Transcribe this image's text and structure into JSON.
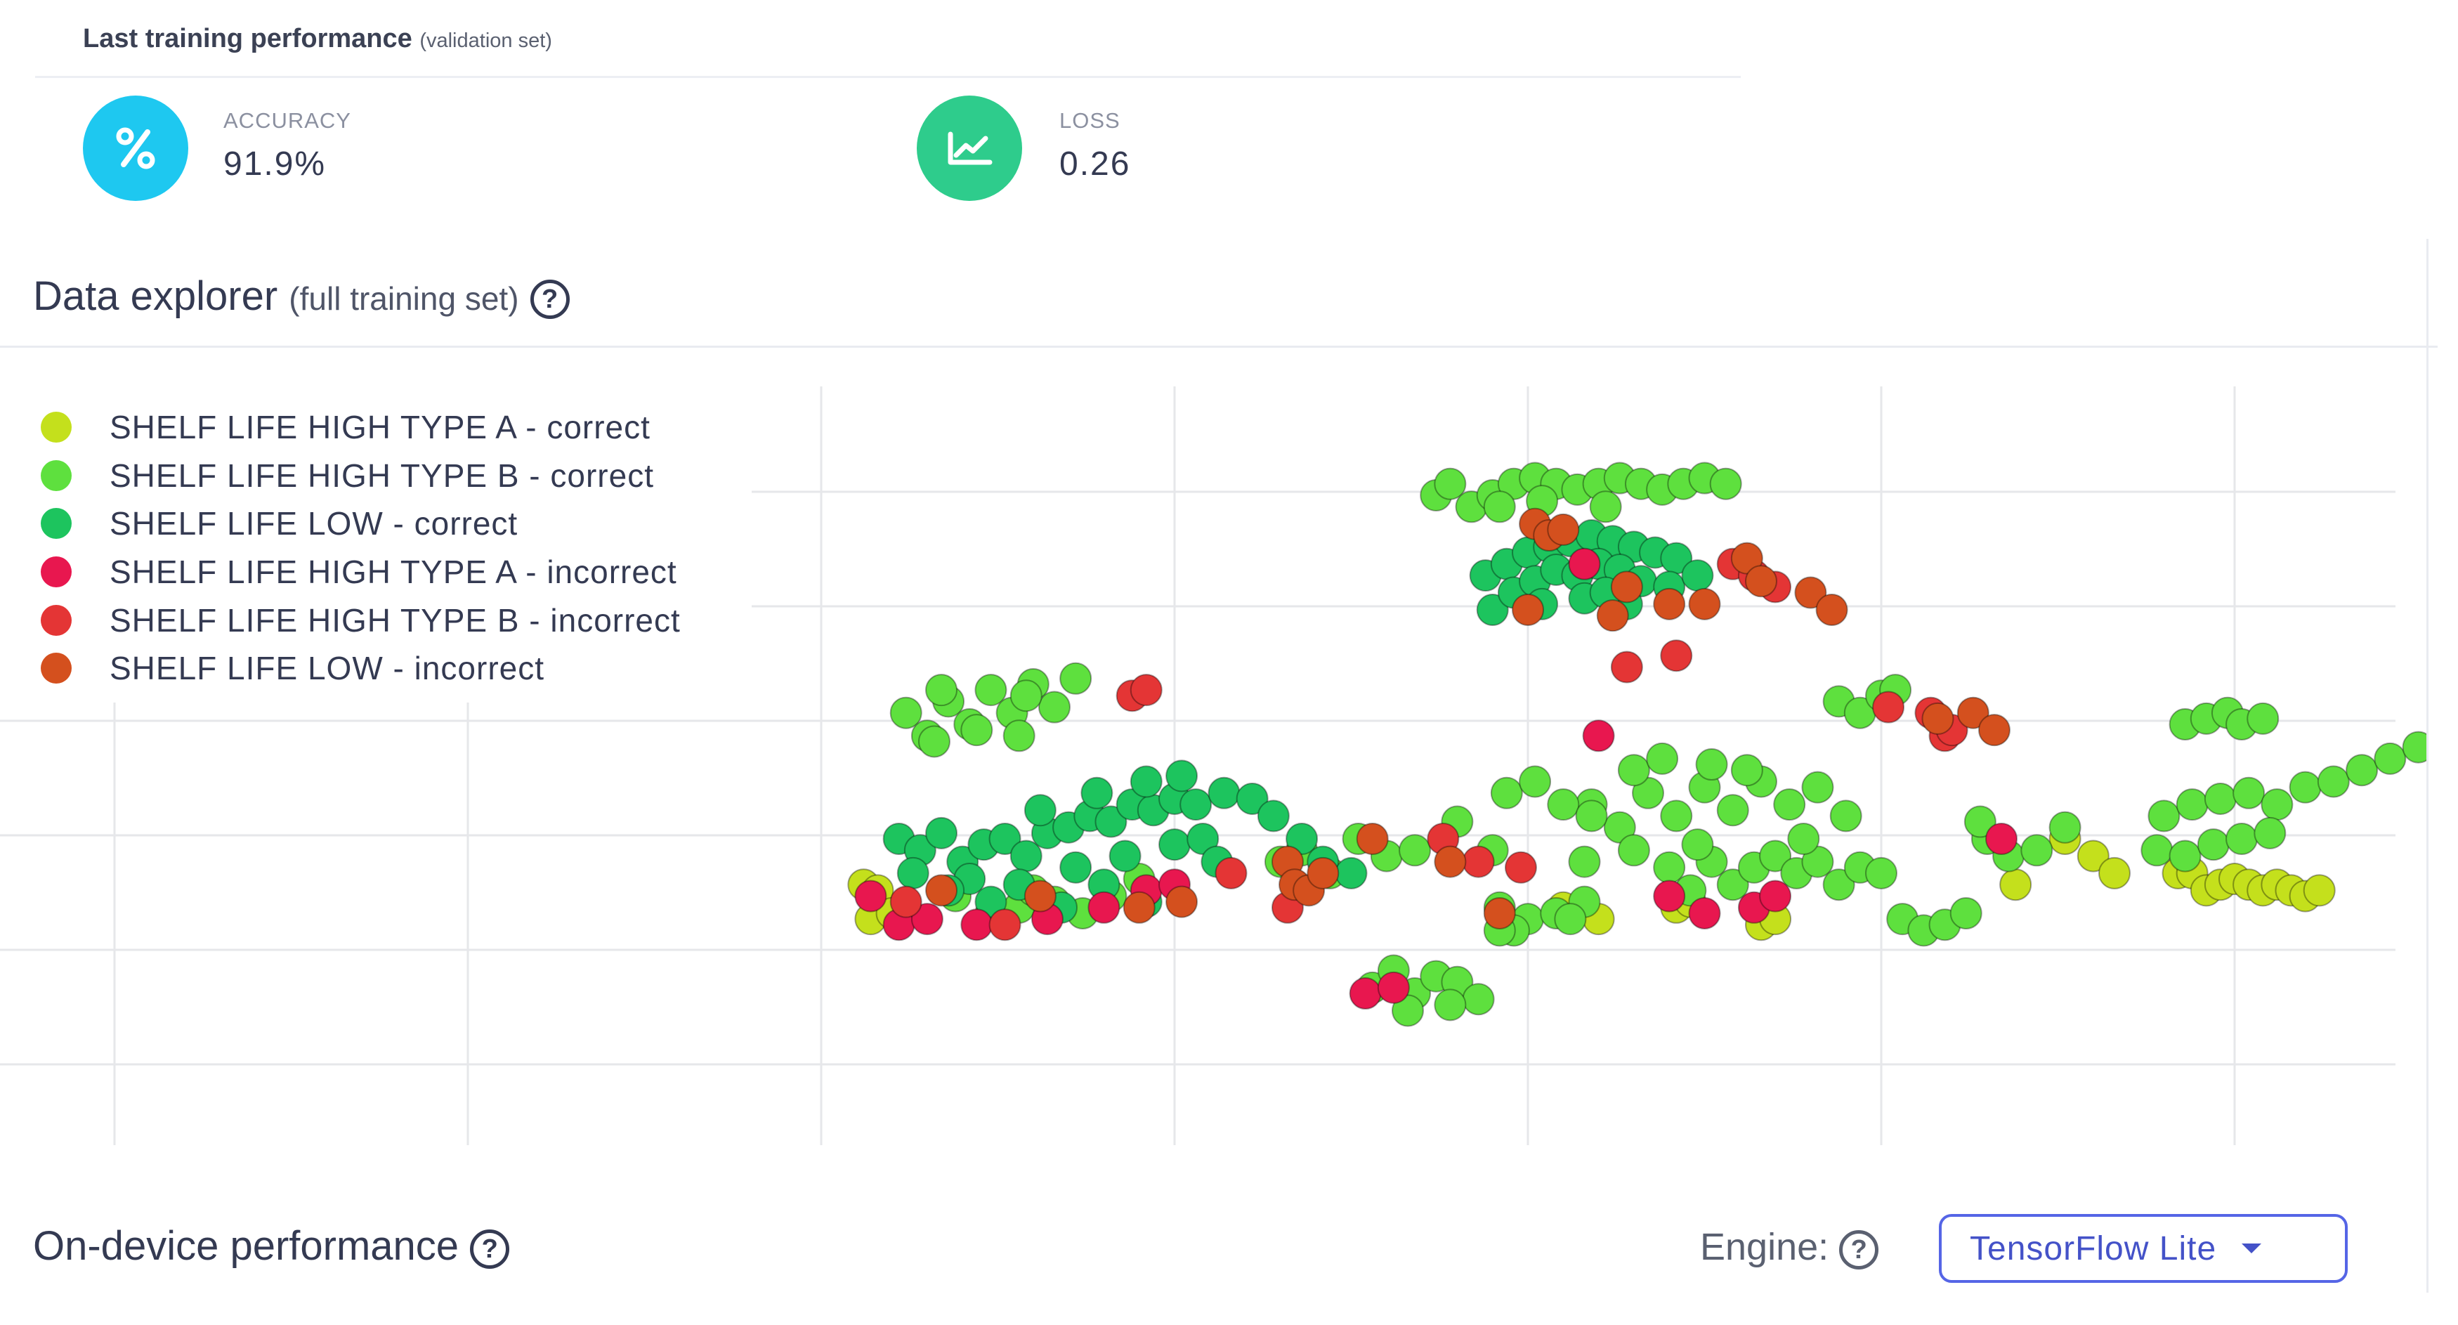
{
  "performance": {
    "title": "Last training performance",
    "subtitle": "(validation set)",
    "accuracy": {
      "label": "ACCURACY",
      "value": "91.9%",
      "icon": "percent-icon",
      "color": "#1ec8f0"
    },
    "loss": {
      "label": "LOSS",
      "value": "0.26",
      "icon": "chart-icon",
      "color": "#2ecc8c"
    }
  },
  "explorer": {
    "title": "Data explorer",
    "subtitle": "(full training set)",
    "help": "?"
  },
  "chart_data": {
    "type": "scatter",
    "title": "",
    "xlabel": "",
    "ylabel": "",
    "grid": true,
    "legend_placement": "top-left",
    "series": [
      {
        "name": "SHELF LIFE HIGH TYPE A - correct",
        "color": "#c4e01c",
        "points": [
          [
            10.6,
            1.6
          ],
          [
            10.7,
            1.3
          ],
          [
            10.8,
            1.55
          ],
          [
            11.0,
            1.35
          ],
          [
            22.1,
            1.4
          ],
          [
            22.3,
            1.45
          ],
          [
            23.3,
            1.25
          ],
          [
            23.5,
            1.3
          ],
          [
            29.2,
            1.7
          ],
          [
            29.4,
            1.7
          ],
          [
            29.6,
            1.55
          ],
          [
            29.8,
            1.6
          ],
          [
            30.0,
            1.65
          ],
          [
            30.2,
            1.6
          ],
          [
            30.4,
            1.55
          ],
          [
            30.6,
            1.6
          ],
          [
            30.8,
            1.55
          ],
          [
            31.0,
            1.5
          ],
          [
            31.2,
            1.55
          ],
          [
            27.6,
            2.0
          ],
          [
            28.0,
            1.85
          ],
          [
            28.3,
            1.7
          ],
          [
            26.9,
            1.6
          ],
          [
            20.5,
            1.4
          ],
          [
            21.0,
            1.3
          ]
        ]
      },
      {
        "name": "SHELF LIFE HIGH TYPE B - correct",
        "color": "#5ee03e",
        "points": [
          [
            18.7,
            5.0
          ],
          [
            18.9,
            5.1
          ],
          [
            19.2,
            4.9
          ],
          [
            19.5,
            5.0
          ],
          [
            19.8,
            5.1
          ],
          [
            20.1,
            5.15
          ],
          [
            20.4,
            5.1
          ],
          [
            20.7,
            5.05
          ],
          [
            21.0,
            5.1
          ],
          [
            21.3,
            5.15
          ],
          [
            21.6,
            5.1
          ],
          [
            21.9,
            5.05
          ],
          [
            22.2,
            5.1
          ],
          [
            22.5,
            5.15
          ],
          [
            22.8,
            5.1
          ],
          [
            19.6,
            4.9
          ],
          [
            20.2,
            4.95
          ],
          [
            21.1,
            4.9
          ],
          [
            11.2,
            3.1
          ],
          [
            11.5,
            2.9
          ],
          [
            11.8,
            3.2
          ],
          [
            12.1,
            3.0
          ],
          [
            12.4,
            3.3
          ],
          [
            12.7,
            3.1
          ],
          [
            13.0,
            3.35
          ],
          [
            13.3,
            3.15
          ],
          [
            13.6,
            3.4
          ],
          [
            11.6,
            2.85
          ],
          [
            12.2,
            2.95
          ],
          [
            12.8,
            2.9
          ],
          [
            11.7,
            3.3
          ],
          [
            12.9,
            3.25
          ],
          [
            24.4,
            3.2
          ],
          [
            24.7,
            3.1
          ],
          [
            25.0,
            3.25
          ],
          [
            25.2,
            3.3
          ],
          [
            29.3,
            3.0
          ],
          [
            29.6,
            3.05
          ],
          [
            29.9,
            3.1
          ],
          [
            30.1,
            3.0
          ],
          [
            30.4,
            3.05
          ],
          [
            20.9,
            2.3
          ],
          [
            21.3,
            2.1
          ],
          [
            21.7,
            2.4
          ],
          [
            22.1,
            2.2
          ],
          [
            22.5,
            2.45
          ],
          [
            22.9,
            2.25
          ],
          [
            23.3,
            2.5
          ],
          [
            23.7,
            2.3
          ],
          [
            24.1,
            2.45
          ],
          [
            24.5,
            2.2
          ],
          [
            21.5,
            2.6
          ],
          [
            22.6,
            2.65
          ],
          [
            21.9,
            2.7
          ],
          [
            23.1,
            2.6
          ],
          [
            22.0,
            1.75
          ],
          [
            22.3,
            1.55
          ],
          [
            22.6,
            1.8
          ],
          [
            22.9,
            1.6
          ],
          [
            23.2,
            1.75
          ],
          [
            23.5,
            1.85
          ],
          [
            23.8,
            1.7
          ],
          [
            24.1,
            1.8
          ],
          [
            24.4,
            1.6
          ],
          [
            24.7,
            1.75
          ],
          [
            25.0,
            1.7
          ],
          [
            21.5,
            1.9
          ],
          [
            22.4,
            1.95
          ],
          [
            23.9,
            2.0
          ],
          [
            20.8,
            1.8
          ],
          [
            19.6,
            1.4
          ],
          [
            20.0,
            1.3
          ],
          [
            20.4,
            1.35
          ],
          [
            20.8,
            1.45
          ],
          [
            19.8,
            1.2
          ],
          [
            20.6,
            1.3
          ],
          [
            17.8,
            0.7
          ],
          [
            18.1,
            0.85
          ],
          [
            18.4,
            0.65
          ],
          [
            18.7,
            0.8
          ],
          [
            19.0,
            0.75
          ],
          [
            19.3,
            0.6
          ],
          [
            18.3,
            0.5
          ],
          [
            18.9,
            0.55
          ],
          [
            19.6,
            1.2
          ],
          [
            25.3,
            1.3
          ],
          [
            25.6,
            1.2
          ],
          [
            25.9,
            1.25
          ],
          [
            26.2,
            1.35
          ],
          [
            26.5,
            2.0
          ],
          [
            26.8,
            1.85
          ],
          [
            27.2,
            1.9
          ],
          [
            27.6,
            2.1
          ],
          [
            26.4,
            2.15
          ],
          [
            11.9,
            1.5
          ],
          [
            12.4,
            1.35
          ],
          [
            12.8,
            1.4
          ],
          [
            13.3,
            1.45
          ],
          [
            13.7,
            1.35
          ],
          [
            14.1,
            1.5
          ],
          [
            13.0,
            1.55
          ],
          [
            14.5,
            1.65
          ],
          [
            16.5,
            1.8
          ],
          [
            16.8,
            1.9
          ],
          [
            17.2,
            1.7
          ],
          [
            17.6,
            2.0
          ],
          [
            18.0,
            1.85
          ],
          [
            18.4,
            1.9
          ],
          [
            19.0,
            2.15
          ],
          [
            19.5,
            1.9
          ],
          [
            19.7,
            2.4
          ],
          [
            20.1,
            2.5
          ],
          [
            20.5,
            2.3
          ],
          [
            20.9,
            2.2
          ],
          [
            29.0,
            2.2
          ],
          [
            29.4,
            2.3
          ],
          [
            29.8,
            2.35
          ],
          [
            30.2,
            2.4
          ],
          [
            30.6,
            2.3
          ],
          [
            31.0,
            2.45
          ],
          [
            31.4,
            2.5
          ],
          [
            31.8,
            2.6
          ],
          [
            32.2,
            2.7
          ],
          [
            32.6,
            2.8
          ],
          [
            33.0,
            2.85
          ],
          [
            28.9,
            1.9
          ],
          [
            29.3,
            1.85
          ],
          [
            29.7,
            1.95
          ],
          [
            30.1,
            2.0
          ],
          [
            30.5,
            2.05
          ]
        ]
      },
      {
        "name": "SHELF LIFE LOW - correct",
        "color": "#1dc45e",
        "points": [
          [
            19.4,
            4.3
          ],
          [
            19.7,
            4.4
          ],
          [
            20.0,
            4.5
          ],
          [
            20.3,
            4.55
          ],
          [
            20.6,
            4.6
          ],
          [
            20.9,
            4.65
          ],
          [
            21.2,
            4.6
          ],
          [
            21.5,
            4.55
          ],
          [
            21.8,
            4.5
          ],
          [
            22.1,
            4.45
          ],
          [
            19.5,
            4.0
          ],
          [
            19.8,
            4.15
          ],
          [
            20.1,
            4.25
          ],
          [
            20.4,
            4.35
          ],
          [
            20.7,
            4.3
          ],
          [
            21.0,
            4.4
          ],
          [
            21.3,
            4.35
          ],
          [
            21.6,
            4.25
          ],
          [
            20.2,
            4.05
          ],
          [
            20.8,
            4.1
          ],
          [
            21.4,
            4.05
          ],
          [
            21.1,
            4.15
          ],
          [
            22.0,
            4.2
          ],
          [
            22.4,
            4.3
          ],
          [
            11.1,
            2.0
          ],
          [
            11.4,
            1.9
          ],
          [
            11.7,
            2.05
          ],
          [
            12.0,
            1.8
          ],
          [
            12.3,
            1.95
          ],
          [
            12.6,
            2.0
          ],
          [
            12.9,
            1.85
          ],
          [
            13.2,
            2.05
          ],
          [
            13.5,
            2.1
          ],
          [
            13.8,
            2.2
          ],
          [
            14.1,
            2.15
          ],
          [
            14.4,
            2.3
          ],
          [
            14.7,
            2.25
          ],
          [
            15.0,
            2.35
          ],
          [
            15.3,
            2.3
          ],
          [
            11.3,
            1.7
          ],
          [
            12.1,
            1.65
          ],
          [
            12.8,
            1.6
          ],
          [
            13.6,
            1.75
          ],
          [
            14.3,
            1.85
          ],
          [
            15.0,
            1.95
          ],
          [
            15.4,
            2.0
          ],
          [
            15.7,
            2.4
          ],
          [
            16.1,
            2.35
          ],
          [
            16.4,
            2.2
          ],
          [
            16.8,
            2.0
          ],
          [
            17.1,
            1.8
          ],
          [
            17.5,
            1.7
          ],
          [
            13.1,
            2.25
          ],
          [
            13.9,
            2.4
          ],
          [
            14.6,
            2.5
          ],
          [
            15.1,
            2.55
          ],
          [
            14.0,
            1.6
          ],
          [
            13.4,
            1.4
          ],
          [
            14.6,
            1.45
          ],
          [
            12.4,
            1.45
          ],
          [
            11.8,
            1.55
          ],
          [
            15.6,
            1.8
          ]
        ]
      },
      {
        "name": "SHELF LIFE HIGH TYPE A - incorrect",
        "color": "#e8174f",
        "points": [
          [
            10.7,
            1.5
          ],
          [
            11.1,
            1.25
          ],
          [
            11.5,
            1.3
          ],
          [
            12.2,
            1.25
          ],
          [
            13.2,
            1.3
          ],
          [
            14.0,
            1.4
          ],
          [
            14.6,
            1.55
          ],
          [
            15.0,
            1.6
          ],
          [
            22.0,
            1.5
          ],
          [
            22.5,
            1.35
          ],
          [
            23.2,
            1.4
          ],
          [
            23.5,
            1.5
          ],
          [
            20.8,
            4.4
          ],
          [
            21.0,
            2.9
          ],
          [
            17.7,
            0.65
          ],
          [
            18.1,
            0.7
          ],
          [
            26.7,
            2.0
          ]
        ]
      },
      {
        "name": "SHELF LIFE HIGH TYPE B - incorrect",
        "color": "#e43535",
        "points": [
          [
            14.4,
            3.25
          ],
          [
            14.6,
            3.3
          ],
          [
            22.9,
            4.4
          ],
          [
            23.2,
            4.3
          ],
          [
            23.5,
            4.2
          ],
          [
            25.1,
            3.15
          ],
          [
            25.7,
            3.1
          ],
          [
            25.9,
            2.9
          ],
          [
            26.0,
            2.95
          ],
          [
            18.8,
            2.0
          ],
          [
            19.3,
            1.8
          ],
          [
            19.9,
            1.75
          ],
          [
            15.8,
            1.7
          ],
          [
            16.6,
            1.4
          ],
          [
            11.2,
            1.45
          ],
          [
            12.6,
            1.25
          ],
          [
            21.4,
            3.5
          ],
          [
            22.1,
            3.6
          ]
        ]
      },
      {
        "name": "SHELF LIFE LOW - incorrect",
        "color": "#d4501e",
        "points": [
          [
            20.1,
            4.75
          ],
          [
            20.3,
            4.65
          ],
          [
            20.5,
            4.7
          ],
          [
            23.1,
            4.45
          ],
          [
            23.3,
            4.25
          ],
          [
            24.0,
            4.15
          ],
          [
            24.3,
            4.0
          ],
          [
            22.0,
            4.05
          ],
          [
            22.5,
            4.05
          ],
          [
            21.4,
            4.2
          ],
          [
            20.0,
            4.0
          ],
          [
            21.2,
            3.95
          ],
          [
            16.6,
            1.8
          ],
          [
            16.7,
            1.6
          ],
          [
            16.9,
            1.55
          ],
          [
            17.1,
            1.7
          ],
          [
            17.8,
            2.0
          ],
          [
            18.9,
            1.8
          ],
          [
            19.6,
            1.35
          ],
          [
            25.8,
            3.05
          ],
          [
            26.3,
            3.1
          ],
          [
            26.6,
            2.95
          ],
          [
            13.1,
            1.5
          ],
          [
            14.5,
            1.4
          ],
          [
            15.1,
            1.45
          ],
          [
            11.7,
            1.55
          ]
        ]
      }
    ]
  },
  "device": {
    "title": "On-device performance",
    "help": "?",
    "engine_label": "Engine:",
    "engine_value": "TensorFlow Lite"
  }
}
